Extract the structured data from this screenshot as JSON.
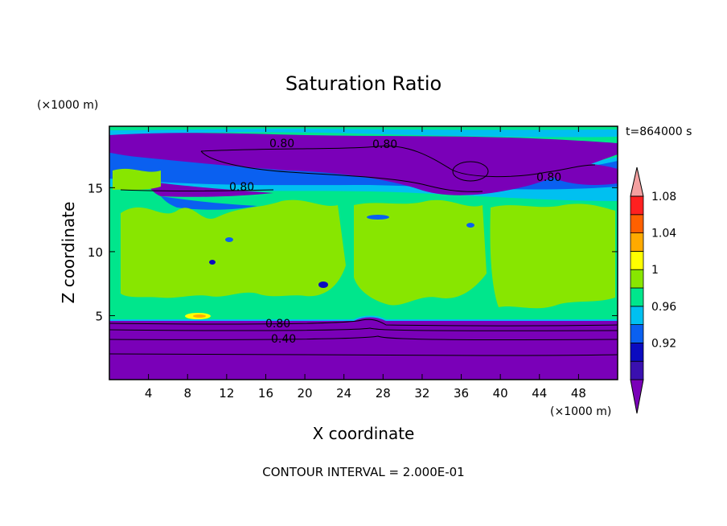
{
  "chart_data": {
    "type": "heatmap",
    "title": "Saturation Ratio",
    "time_label": "t=864000 s",
    "xlabel": "X coordinate",
    "ylabel": "Z coordinate",
    "x_unit": "(×1000 m)",
    "y_unit": "(×1000 m)",
    "xlim": [
      0,
      52
    ],
    "ylim": [
      0,
      19.8
    ],
    "x_ticks": [
      4,
      8,
      12,
      16,
      20,
      24,
      28,
      32,
      36,
      40,
      44,
      48
    ],
    "y_ticks": [
      5,
      10,
      15
    ],
    "footer": "CONTOUR INTERVAL = 2.000E-01",
    "contour_labels": [
      {
        "text": "0.80",
        "x": 18,
        "z": 18.6
      },
      {
        "text": "0.80",
        "x": 28.5,
        "z": 18.6
      },
      {
        "text": "0.80",
        "x": 45,
        "z": 15.9
      },
      {
        "text": "0.80",
        "x": 13,
        "z": 14.9
      },
      {
        "text": "0.80",
        "x": 17.5,
        "z": 4.4
      },
      {
        "text": "0.40",
        "x": 17.5,
        "z": 3.1
      }
    ],
    "colorbar": {
      "levels": [
        0.92,
        0.96,
        1,
        1.04,
        1.08
      ],
      "level_labels": [
        "0.92",
        "0.96",
        "1",
        "1.04",
        "1.08"
      ],
      "colors": [
        "#7a00b8",
        "#3a10b0",
        "#0b0bc0",
        "#0a60f0",
        "#00c0f0",
        "#00e68c",
        "#88e600",
        "#ffff00",
        "#ffaa00",
        "#ff6000",
        "#ff2020",
        "#f4a0a0"
      ]
    }
  }
}
